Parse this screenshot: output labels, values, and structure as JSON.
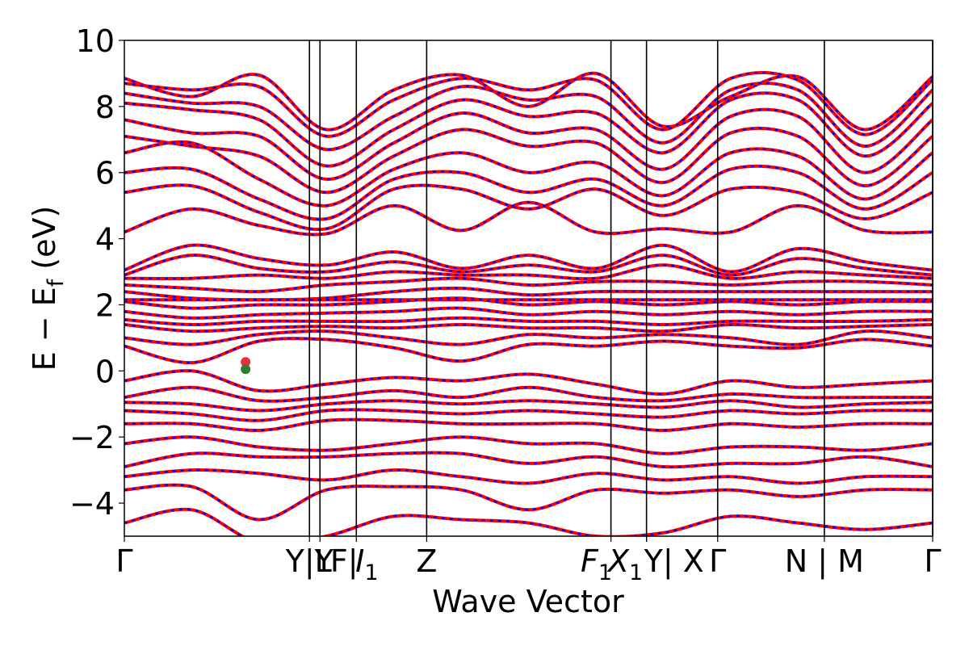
{
  "chart_data": {
    "type": "line",
    "xlabel": "Wave Vector",
    "ylabel_main": "E − E",
    "ylabel_sub": "f",
    "ylabel_unit": " (eV)",
    "ylim": [
      -5,
      10
    ],
    "yticks": [
      10,
      8,
      6,
      4,
      2,
      0,
      -2,
      -4
    ],
    "ytick_labels": [
      "10",
      "8",
      "6",
      "4",
      "2",
      "0",
      "−2",
      "−4"
    ],
    "xlim": [
      0,
      1
    ],
    "k_points": [
      {
        "label": "Γ",
        "x": 0.0
      },
      {
        "label": "Y|Y",
        "x": 0.229
      },
      {
        "label": "L",
        "x": 0.242
      },
      {
        "label": "F| I",
        "sub": "1",
        "x": 0.287
      },
      {
        "label": "Z",
        "x": 0.374
      },
      {
        "label": "F",
        "sub": "1",
        "x": 0.602
      },
      {
        "label": "X",
        "sub": "1",
        "x": 0.646
      },
      {
        "label": "Y| X",
        "x": 0.646
      },
      {
        "label": "Γ",
        "x": 0.734
      },
      {
        "label": "N | M",
        "x": 0.866
      },
      {
        "label": "Γ",
        "x": 1.0
      }
    ],
    "tick_text": [
      {
        "text": "Γ",
        "x": 0.0
      },
      {
        "text": "Y|Y",
        "x": 0.229
      },
      {
        "text": "L",
        "x": 0.246
      },
      {
        "text": "F|",
        "x": 0.272
      },
      {
        "text": "I",
        "sub": "1",
        "x": 0.3
      },
      {
        "text": "Z",
        "x": 0.374
      },
      {
        "text": "F",
        "sub": "1",
        "x": 0.584
      },
      {
        "text": "X",
        "sub": "1",
        "x": 0.62
      },
      {
        "text": "Y| X",
        "x": 0.68
      },
      {
        "text": "Γ",
        "x": 0.734
      },
      {
        "text": "N | M",
        "x": 0.866
      },
      {
        "text": "Γ",
        "x": 1.0
      }
    ],
    "vlines": [
      0.229,
      0.242,
      0.287,
      0.374,
      0.602,
      0.646,
      0.734,
      0.866,
      1.0
    ],
    "series_colors": {
      "primary": "#ff0000",
      "overlay": "#0000ff",
      "marker_cbm": "#e8303a",
      "marker_vbm": "#2e7d32"
    },
    "markers": [
      {
        "name": "cbm",
        "x": 0.15,
        "y": 0.27
      },
      {
        "name": "vbm",
        "x": 0.15,
        "y": 0.05
      }
    ],
    "bands": [
      {
        "y": [
          8.85,
          8.3,
          8.95,
          7.3,
          8.5,
          8.95,
          8.0,
          9.0,
          7.4,
          8.3,
          8.9,
          7.3,
          8.9
        ]
      },
      {
        "y": [
          8.7,
          8.5,
          8.6,
          7.1,
          8.2,
          8.85,
          8.5,
          8.8,
          7.3,
          8.85,
          8.8,
          7.15,
          8.8
        ]
      },
      {
        "y": [
          8.4,
          8.1,
          8.0,
          6.7,
          7.7,
          8.6,
          8.2,
          8.3,
          6.9,
          8.5,
          8.5,
          6.8,
          8.5
        ]
      },
      {
        "y": [
          8.1,
          7.9,
          7.6,
          6.2,
          7.3,
          8.2,
          7.7,
          7.8,
          6.6,
          8.2,
          8.2,
          6.5,
          8.1
        ]
      },
      {
        "y": [
          7.6,
          7.2,
          7.1,
          5.8,
          6.9,
          7.8,
          7.2,
          7.3,
          6.1,
          7.7,
          7.7,
          6.0,
          7.6
        ]
      },
      {
        "y": [
          7.1,
          6.8,
          6.5,
          5.4,
          6.5,
          7.3,
          6.8,
          6.9,
          5.7,
          7.2,
          7.1,
          5.6,
          7.1
        ]
      },
      {
        "y": [
          6.6,
          6.9,
          5.8,
          5.0,
          6.1,
          6.6,
          6.0,
          6.3,
          5.3,
          6.6,
          6.5,
          5.2,
          6.6
        ]
      },
      {
        "y": [
          6.0,
          6.1,
          5.2,
          4.6,
          5.8,
          6.0,
          5.4,
          5.8,
          5.0,
          6.1,
          6.0,
          4.9,
          6.0
        ]
      },
      {
        "y": [
          5.4,
          5.6,
          4.8,
          4.3,
          5.5,
          5.5,
          4.9,
          5.5,
          4.7,
          5.5,
          5.4,
          4.6,
          5.4
        ]
      },
      {
        "y": [
          4.2,
          4.9,
          4.4,
          4.15,
          5.0,
          4.25,
          5.1,
          4.2,
          4.3,
          4.2,
          5.0,
          4.25,
          4.2
        ]
      },
      {
        "y": [
          3.05,
          3.8,
          3.4,
          3.2,
          3.6,
          3.1,
          3.5,
          3.1,
          3.8,
          3.0,
          3.7,
          3.3,
          3.05
        ]
      },
      {
        "y": [
          2.9,
          3.5,
          3.1,
          3.0,
          3.3,
          3.0,
          3.2,
          3.0,
          3.5,
          2.9,
          3.4,
          3.1,
          2.9
        ]
      },
      {
        "y": [
          2.8,
          2.8,
          2.9,
          2.8,
          3.0,
          2.9,
          2.9,
          2.8,
          3.2,
          2.8,
          3.0,
          2.9,
          2.8
        ]
      },
      {
        "y": [
          2.6,
          2.5,
          2.4,
          2.6,
          2.7,
          2.8,
          2.6,
          2.7,
          2.7,
          2.6,
          2.7,
          2.7,
          2.6
        ]
      },
      {
        "y": [
          2.4,
          2.2,
          2.15,
          2.2,
          2.4,
          2.5,
          2.3,
          2.4,
          2.4,
          2.4,
          2.4,
          2.4,
          2.4
        ]
      },
      {
        "y": [
          2.15,
          2.15,
          2.15,
          2.15,
          2.15,
          2.15,
          2.15,
          2.15,
          2.15,
          2.15,
          2.15,
          2.15,
          2.15
        ]
      },
      {
        "y": [
          2.1,
          1.9,
          2.0,
          2.0,
          2.1,
          2.2,
          2.0,
          2.1,
          2.0,
          2.1,
          2.0,
          2.1,
          2.1
        ]
      },
      {
        "y": [
          1.8,
          1.6,
          1.7,
          1.75,
          1.8,
          1.9,
          1.7,
          1.8,
          1.7,
          1.8,
          1.7,
          1.8,
          1.8
        ]
      },
      {
        "y": [
          1.55,
          1.4,
          1.5,
          1.5,
          1.5,
          1.6,
          1.5,
          1.5,
          1.4,
          1.5,
          1.5,
          1.5,
          1.55
        ]
      },
      {
        "y": [
          1.4,
          1.2,
          1.3,
          1.35,
          1.3,
          1.4,
          1.3,
          1.3,
          1.2,
          1.4,
          1.3,
          1.35,
          1.4
        ]
      },
      {
        "y": [
          1.0,
          0.8,
          1.1,
          1.2,
          1.0,
          0.8,
          1.1,
          1.0,
          1.1,
          1.0,
          0.8,
          1.2,
          1.0
        ]
      },
      {
        "y": [
          0.75,
          0.25,
          0.9,
          0.95,
          0.7,
          0.3,
          0.8,
          0.75,
          0.9,
          0.75,
          0.7,
          0.95,
          0.75
        ]
      },
      {
        "y": [
          -0.3,
          0.0,
          -0.6,
          -0.4,
          -0.2,
          -0.3,
          -0.1,
          -0.4,
          -0.7,
          -0.3,
          -0.5,
          -0.4,
          -0.3
        ]
      },
      {
        "y": [
          -0.8,
          -0.5,
          -0.9,
          -0.8,
          -0.6,
          -0.8,
          -0.5,
          -0.8,
          -0.9,
          -0.7,
          -0.8,
          -0.8,
          -0.8
        ]
      },
      {
        "y": [
          -0.95,
          -1.0,
          -1.2,
          -1.0,
          -0.9,
          -1.0,
          -0.9,
          -1.0,
          -1.1,
          -0.9,
          -1.1,
          -1.0,
          -0.95
        ]
      },
      {
        "y": [
          -1.2,
          -1.3,
          -1.5,
          -1.2,
          -1.2,
          -1.3,
          -1.2,
          -1.3,
          -1.4,
          -1.2,
          -1.3,
          -1.2,
          -1.2
        ]
      },
      {
        "y": [
          -1.6,
          -1.6,
          -1.8,
          -1.5,
          -1.5,
          -1.6,
          -1.6,
          -1.6,
          -1.8,
          -1.6,
          -1.7,
          -1.6,
          -1.6
        ]
      },
      {
        "y": [
          -2.2,
          -2.0,
          -2.3,
          -2.4,
          -2.2,
          -2.0,
          -2.2,
          -2.2,
          -2.5,
          -2.3,
          -2.3,
          -2.4,
          -2.2
        ]
      },
      {
        "y": [
          -2.9,
          -2.5,
          -2.6,
          -2.6,
          -2.5,
          -2.5,
          -2.8,
          -2.6,
          -2.9,
          -2.8,
          -2.8,
          -2.6,
          -2.9
        ]
      },
      {
        "y": [
          -3.2,
          -3.0,
          -3.1,
          -3.3,
          -3.0,
          -3.2,
          -3.4,
          -3.1,
          -3.3,
          -3.2,
          -3.4,
          -3.2,
          -3.2
        ]
      },
      {
        "y": [
          -3.6,
          -3.5,
          -4.5,
          -3.6,
          -3.5,
          -3.6,
          -4.2,
          -3.6,
          -3.7,
          -3.6,
          -3.8,
          -3.6,
          -3.6
        ]
      },
      {
        "y": [
          -4.6,
          -4.2,
          -5.2,
          -5.0,
          -4.4,
          -4.5,
          -4.6,
          -5.0,
          -4.9,
          -4.4,
          -4.6,
          -4.8,
          -4.6
        ]
      }
    ]
  }
}
